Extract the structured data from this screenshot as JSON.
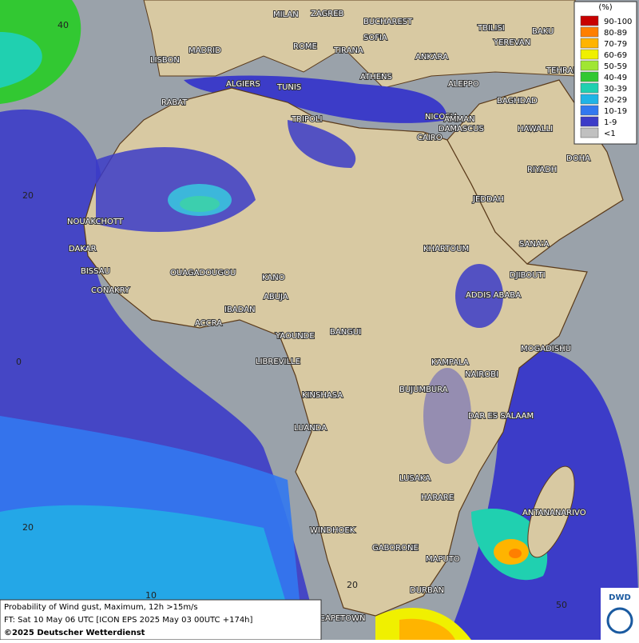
{
  "map": {
    "legend": {
      "title": "(%)",
      "items": [
        {
          "label": "90-100",
          "color": "#c80000"
        },
        {
          "label": "80-89",
          "color": "#ff7f00"
        },
        {
          "label": "70-79",
          "color": "#ffb400"
        },
        {
          "label": "60-69",
          "color": "#f0f000"
        },
        {
          "label": "50-59",
          "color": "#a0e632"
        },
        {
          "label": "40-49",
          "color": "#32c832"
        },
        {
          "label": "30-39",
          "color": "#20d0b0"
        },
        {
          "label": "20-29",
          "color": "#20b4e6"
        },
        {
          "label": "10-19",
          "color": "#3278f0"
        },
        {
          "label": "1-9",
          "color": "#3c3cc8"
        },
        {
          "label": "<1",
          "color": "#c0c0c0"
        }
      ]
    },
    "grid_labels": [
      "40",
      "20",
      "0",
      "20",
      "10",
      "20",
      "50"
    ],
    "cities": [
      "MILAN",
      "ZAGREB",
      "BUCHAREST",
      "MADRID",
      "ROME",
      "SOFIA",
      "TBILISI",
      "BAKU",
      "YEREVAN",
      "LISBON",
      "TIRANA",
      "ANKARA",
      "TEHRAN",
      "ALGIERS",
      "TUNIS",
      "ATHENS",
      "ALEPPO",
      "RABAT",
      "NICOSIA",
      "DAMASCUS",
      "BAGHDAD",
      "AMMAN",
      "TRIPOLI",
      "CAIRO",
      "HAWALLI",
      "DOHA",
      "RIYADH",
      "JEDDAH",
      "NOUAKCHOTT",
      "DAKAR",
      "BISSAU",
      "CONAKRY",
      "OUAGADOUGOU",
      "KANO",
      "KHARTOUM",
      "SANA'A",
      "DJIBOUTI",
      "ABUJA",
      "ADDIS ABABA",
      "IBADAN",
      "ACCRA",
      "YAOUNDE",
      "BANGUI",
      "MOGADISHU",
      "LIBREVILLE",
      "KAMPALA",
      "NAIROBI",
      "KINSHASA",
      "BUJUMBURA",
      "DAR ES SALAAM",
      "LUANDA",
      "LUSAKA",
      "HARARE",
      "ANTANANARIVO",
      "WINDHOEK",
      "GABORONE",
      "MAPUTO",
      "DURBAN",
      "CAPETOWN"
    ],
    "footer": [
      "Probability of Wind gust, Maximum, 12h >15m/s",
      "FT: Sat 10 May 06 UTC [ICON EPS 2025 May 03 00UTC +174h]",
      "©2025 Deutscher Wetterdienst"
    ],
    "logo": "DWD"
  }
}
